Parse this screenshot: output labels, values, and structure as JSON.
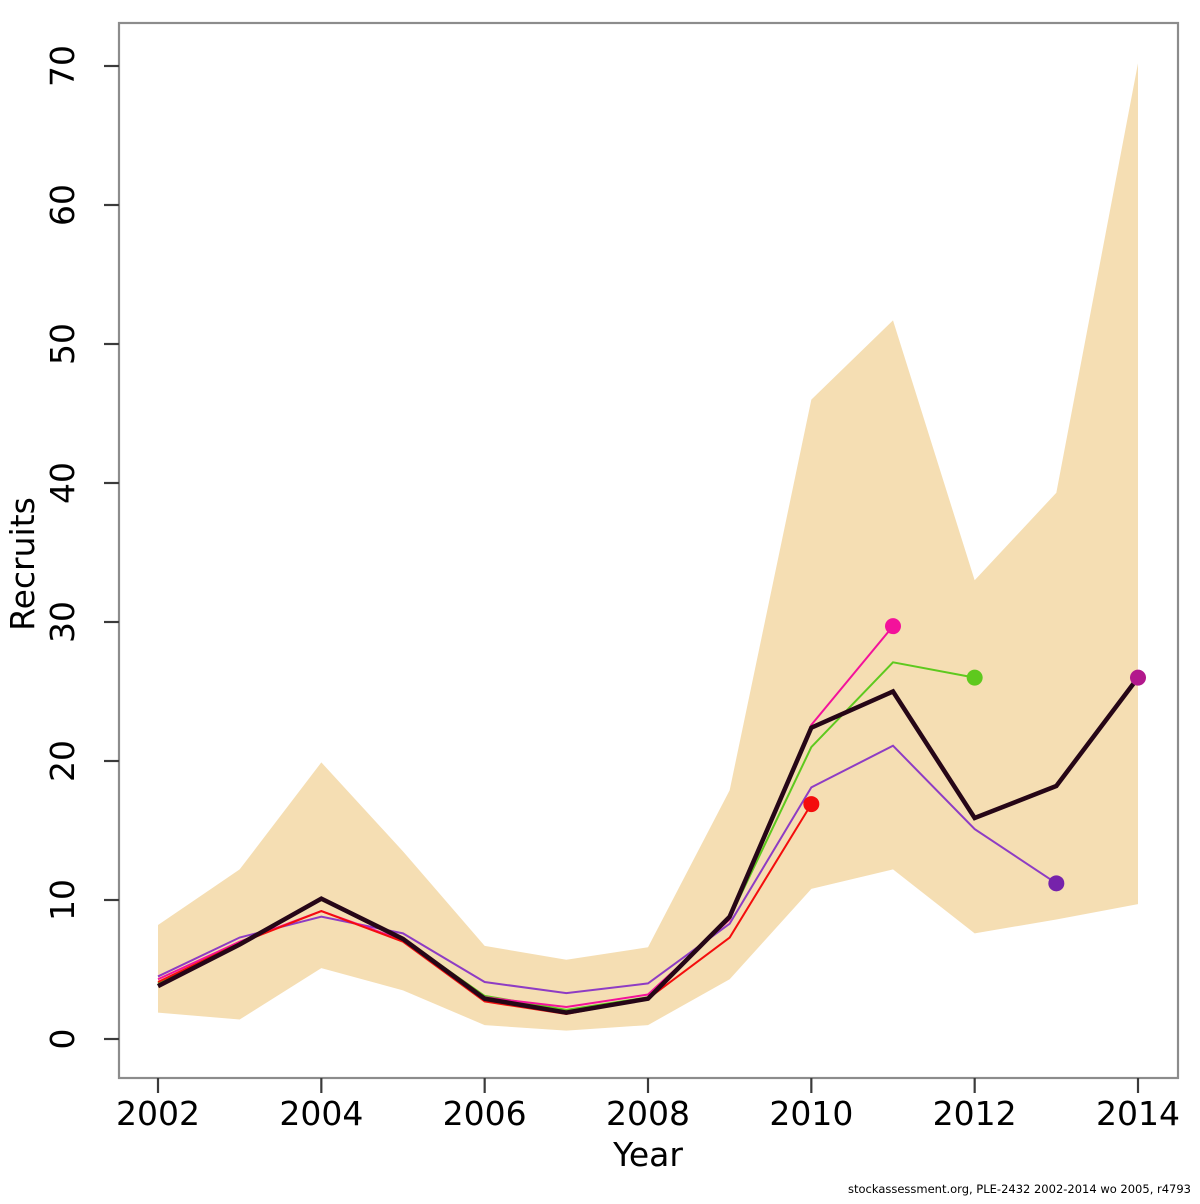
{
  "figure": {
    "background": "#ffffff",
    "border_color": "#8c8c8c",
    "tick_color": "#3a3a3a",
    "text_color": "#000000"
  },
  "footer": {
    "text": "stockassessment.org, PLE-2432  2002-2014  wo  2005, r4793"
  },
  "chart_data": {
    "type": "line",
    "title": "",
    "xlabel": "Year",
    "ylabel": "Recruits",
    "x_ticks": [
      2002,
      2004,
      2006,
      2008,
      2010,
      2012,
      2014
    ],
    "y_ticks": [
      0,
      10,
      20,
      30,
      40,
      50,
      60,
      70
    ],
    "xlim": [
      2001.5,
      2014.5
    ],
    "ylim": [
      0,
      72
    ],
    "grid": false,
    "legend": "none",
    "band": {
      "name": "base-run-confidence-band",
      "color": "#f5deb3",
      "years": [
        2002,
        2003,
        2004,
        2005,
        2006,
        2007,
        2008,
        2009,
        2010,
        2011,
        2012,
        2013,
        2014
      ],
      "lower": [
        1.9,
        1.4,
        5.1,
        3.5,
        1.0,
        0.6,
        1.0,
        4.3,
        10.8,
        12.2,
        7.6,
        8.6,
        9.7
      ],
      "upper": [
        8.2,
        12.2,
        19.9,
        13.5,
        6.7,
        5.7,
        6.6,
        17.9,
        46.0,
        51.7,
        33.0,
        39.3,
        70.2
      ]
    },
    "series": [
      {
        "name": "retro-peel-2013",
        "color": "#8e3cc4",
        "dot_color": "#7623ab",
        "line_width": 2,
        "years": [
          2002,
          2003,
          2004,
          2005,
          2006,
          2007,
          2008,
          2009,
          2010,
          2011,
          2012,
          2013
        ],
        "values": [
          4.5,
          7.3,
          8.8,
          7.6,
          4.1,
          3.3,
          4.0,
          8.3,
          18.1,
          21.1,
          15.1,
          11.2
        ]
      },
      {
        "name": "retro-peel-2012",
        "color": "#5ec91e",
        "dot_color": "#5ec91e",
        "line_width": 2,
        "years": [
          2002,
          2003,
          2004,
          2005,
          2006,
          2007,
          2008,
          2009,
          2010,
          2011,
          2012
        ],
        "values": [
          4.0,
          6.9,
          10.0,
          7.2,
          3.1,
          2.1,
          3.0,
          8.7,
          21.0,
          27.1,
          26.0
        ]
      },
      {
        "name": "retro-peel-2011",
        "color": "#f3129b",
        "dot_color": "#f3129b",
        "line_width": 2,
        "years": [
          2002,
          2003,
          2004,
          2005,
          2006,
          2007,
          2008,
          2009,
          2010,
          2011
        ],
        "values": [
          4.3,
          7.0,
          9.2,
          7.1,
          3.0,
          2.3,
          3.2,
          8.6,
          22.6,
          29.7
        ]
      },
      {
        "name": "retro-peel-2010",
        "color": "#f40d0d",
        "dot_color": "#f40d0d",
        "line_width": 2,
        "years": [
          2002,
          2003,
          2004,
          2005,
          2006,
          2007,
          2008,
          2009,
          2010
        ],
        "values": [
          4.1,
          6.9,
          9.2,
          7.0,
          2.7,
          1.8,
          2.9,
          7.3,
          16.9
        ]
      },
      {
        "name": "base-run-2014",
        "color": "#260617",
        "dot_color": "#b2188c",
        "line_width": 4.5,
        "years": [
          2002,
          2003,
          2004,
          2005,
          2006,
          2007,
          2008,
          2009,
          2010,
          2011,
          2012,
          2013,
          2014
        ],
        "values": [
          3.8,
          6.8,
          10.1,
          7.2,
          2.9,
          1.9,
          2.9,
          8.8,
          22.4,
          25.0,
          15.9,
          18.2,
          26.0
        ]
      }
    ]
  }
}
